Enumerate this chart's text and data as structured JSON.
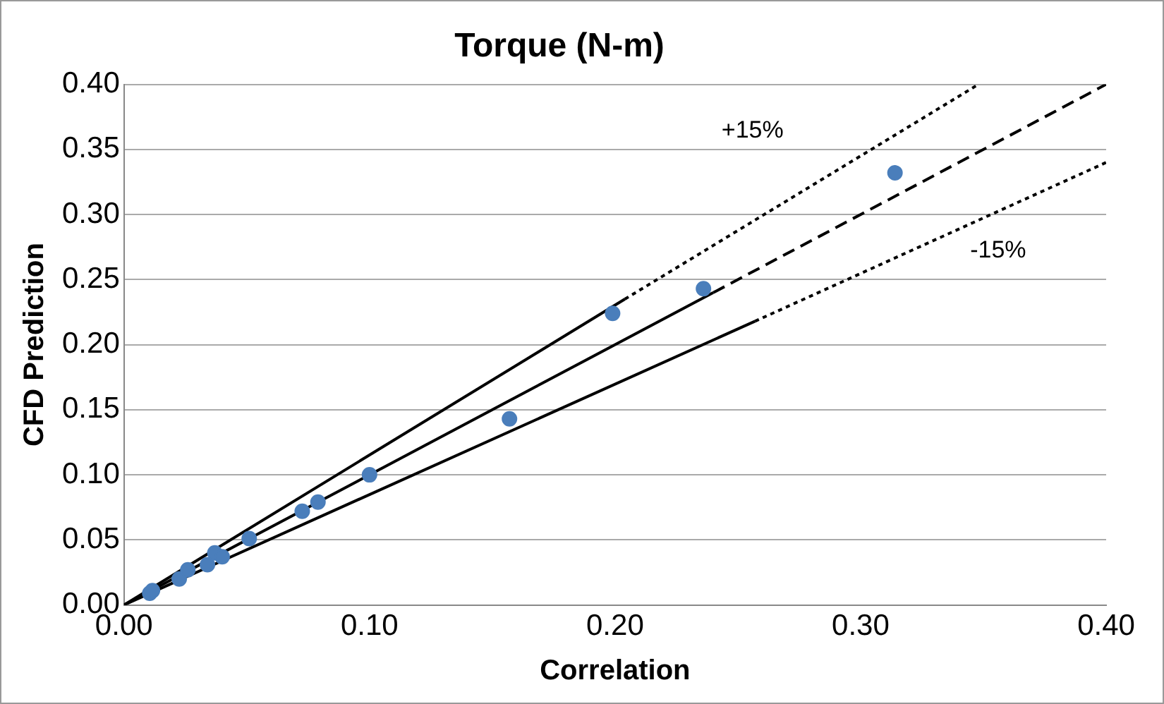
{
  "chart_data": {
    "type": "scatter",
    "title": "Torque (N-m)",
    "xlabel": "Correlation",
    "ylabel": "CFD Prediction",
    "xlim": [
      0,
      0.4
    ],
    "xticks": [
      {
        "value": 0,
        "label": "0.00"
      },
      {
        "value": 0.1,
        "label": "0.10"
      },
      {
        "value": 0.2,
        "label": "0.20"
      },
      {
        "value": 0.3,
        "label": "0.30"
      },
      {
        "value": 0.4,
        "label": "0.40"
      }
    ],
    "ylim": [
      0,
      0.4
    ],
    "yticks": [
      {
        "value": 0,
        "label": "0.00"
      },
      {
        "value": 0.05,
        "label": "0.05"
      },
      {
        "value": 0.1,
        "label": "0.10"
      },
      {
        "value": 0.15,
        "label": "0.15"
      },
      {
        "value": 0.2,
        "label": "0.20"
      },
      {
        "value": 0.25,
        "label": "0.25"
      },
      {
        "value": 0.3,
        "label": "0.30"
      },
      {
        "value": 0.35,
        "label": "0.35"
      },
      {
        "value": 0.4,
        "label": "0.40"
      }
    ],
    "grid": "y",
    "legend": false,
    "series": [
      {
        "type": "scatter",
        "color": "#4a7ebb",
        "marker": "circle",
        "x": [
          0.0105,
          0.0116,
          0.0225,
          0.026,
          0.034,
          0.037,
          0.04,
          0.051,
          0.0726,
          0.079,
          0.1,
          0.157,
          0.199,
          0.236,
          0.314
        ],
        "values": [
          0.009,
          0.011,
          0.02,
          0.027,
          0.031,
          0.04,
          0.037,
          0.051,
          0.072,
          0.079,
          0.1,
          0.143,
          0.224,
          0.243,
          0.332
        ]
      },
      {
        "type": "line",
        "color": "#000000",
        "marker": "none",
        "line_style": "solid",
        "x": [
          0,
          0.204
        ],
        "values": [
          0,
          0.235
        ]
      },
      {
        "type": "line",
        "color": "#000000",
        "marker": "none",
        "line_style": "dotted",
        "x": [
          0.204,
          0.348
        ],
        "values": [
          0.235,
          0.4
        ]
      },
      {
        "type": "line",
        "color": "#000000",
        "marker": "none",
        "line_style": "solid",
        "x": [
          0,
          0.24
        ],
        "values": [
          0,
          0.24
        ]
      },
      {
        "type": "line",
        "color": "#000000",
        "marker": "none",
        "line_style": "dashed",
        "x": [
          0.24,
          0.4
        ],
        "values": [
          0.24,
          0.4
        ]
      },
      {
        "type": "line",
        "color": "#000000",
        "marker": "none",
        "line_style": "solid",
        "x": [
          0,
          0.257
        ],
        "values": [
          0,
          0.218
        ]
      },
      {
        "type": "line",
        "color": "#000000",
        "marker": "none",
        "line_style": "dotted",
        "x": [
          0.257,
          0.4
        ],
        "values": [
          0.218,
          0.34
        ]
      }
    ],
    "annotations": [
      "+15%",
      "-15%"
    ]
  }
}
